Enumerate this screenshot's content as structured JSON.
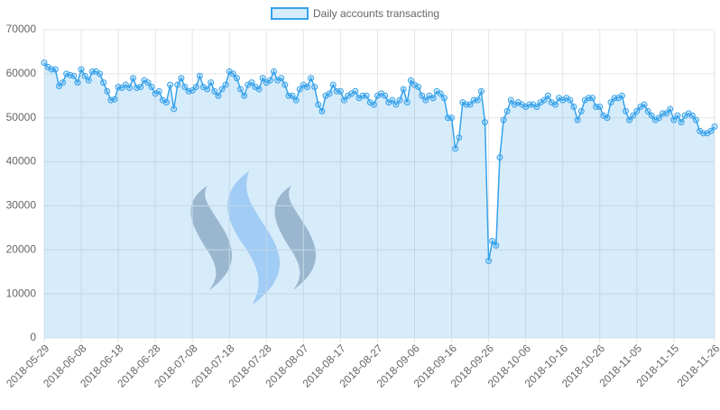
{
  "chart_data": {
    "type": "line",
    "categories": [
      "2018-05-29",
      null,
      null,
      null,
      null,
      null,
      null,
      null,
      null,
      null,
      "2018-06-08",
      null,
      null,
      null,
      null,
      null,
      null,
      null,
      null,
      null,
      "2018-06-18",
      null,
      null,
      null,
      null,
      null,
      null,
      null,
      null,
      null,
      "2018-06-28",
      null,
      null,
      null,
      null,
      null,
      null,
      null,
      null,
      null,
      "2018-07-08",
      null,
      null,
      null,
      null,
      null,
      null,
      null,
      null,
      null,
      "2018-07-18",
      null,
      null,
      null,
      null,
      null,
      null,
      null,
      null,
      null,
      "2018-07-28",
      null,
      null,
      null,
      null,
      null,
      null,
      null,
      null,
      null,
      "2018-08-07",
      null,
      null,
      null,
      null,
      null,
      null,
      null,
      null,
      null,
      "2018-08-17",
      null,
      null,
      null,
      null,
      null,
      null,
      null,
      null,
      null,
      "2018-08-27",
      null,
      null,
      null,
      null,
      null,
      null,
      null,
      null,
      null,
      "2018-09-06",
      null,
      null,
      null,
      null,
      null,
      null,
      null,
      null,
      null,
      "2018-09-16",
      null,
      null,
      null,
      null,
      null,
      null,
      null,
      null,
      null,
      "2018-09-26",
      null,
      null,
      null,
      null,
      null,
      null,
      null,
      null,
      null,
      "2018-10-06",
      null,
      null,
      null,
      null,
      null,
      null,
      null,
      null,
      null,
      "2018-10-16",
      null,
      null,
      null,
      null,
      null,
      null,
      null,
      null,
      null,
      "2018-10-26",
      null,
      null,
      null,
      null,
      null,
      null,
      null,
      null,
      null,
      "2018-11-05",
      null,
      null,
      null,
      null,
      null,
      null,
      null,
      null,
      null,
      "2018-11-15",
      null,
      null,
      null,
      null,
      null,
      null,
      null,
      null,
      null,
      null,
      "2018-11-26"
    ],
    "series": [
      {
        "name": "Daily accounts transacting",
        "color": "#36a2eb",
        "fill": "rgba(54,162,235,0.2)",
        "values": [
          62500,
          61500,
          61000,
          61000,
          57200,
          58000,
          60000,
          59700,
          59500,
          58000,
          61000,
          59500,
          58500,
          60500,
          60500,
          60000,
          58000,
          56000,
          54000,
          54200,
          57000,
          56800,
          57500,
          56800,
          59000,
          56800,
          57000,
          58500,
          58000,
          57000,
          55500,
          56000,
          54000,
          53500,
          57500,
          52000,
          57500,
          59000,
          57000,
          56000,
          56200,
          57000,
          59500,
          57000,
          56500,
          58000,
          56000,
          55000,
          56500,
          57500,
          60500,
          60000,
          59000,
          56500,
          55000,
          57500,
          58000,
          57000,
          56500,
          59000,
          58000,
          58500,
          60500,
          58500,
          59000,
          57500,
          55000,
          55000,
          54000,
          56500,
          57500,
          57000,
          59000,
          57000,
          53000,
          51500,
          55000,
          55500,
          57500,
          56000,
          56000,
          54000,
          55000,
          55500,
          56000,
          54500,
          55000,
          55000,
          53500,
          53000,
          55000,
          55500,
          55000,
          53500,
          54000,
          53000,
          54000,
          56500,
          53500,
          58500,
          57500,
          57000,
          55000,
          54000,
          55000,
          54500,
          56000,
          55500,
          54500,
          50000,
          50000,
          43000,
          45500,
          53500,
          53000,
          53000,
          54000,
          54000,
          56000,
          49000,
          17500,
          22000,
          21000,
          41000,
          49500,
          51500,
          54000,
          53000,
          53500,
          53000,
          52500,
          53000,
          53000,
          52500,
          53500,
          54000,
          55000,
          53500,
          53000,
          54500,
          54000,
          54500,
          54000,
          52500,
          49500,
          51500,
          54000,
          54500,
          54500,
          52500,
          52500,
          50500,
          50000,
          53500,
          54500,
          54500,
          55000,
          51500,
          49500,
          50500,
          51500,
          52500,
          53000,
          51500,
          50500,
          49500,
          50000,
          51000,
          51000,
          52000,
          49500,
          50500,
          49000,
          50500,
          51000,
          50500,
          49500,
          47000,
          46500,
          46500,
          47000,
          48000
        ]
      }
    ],
    "ylim": [
      0,
      70000
    ],
    "yticks": [
      0,
      10000,
      20000,
      30000,
      40000,
      50000,
      60000,
      70000
    ],
    "grid": true
  }
}
